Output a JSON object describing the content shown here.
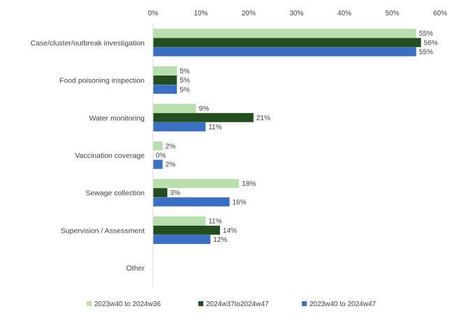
{
  "chart_data": {
    "type": "bar",
    "orientation": "horizontal",
    "title": "",
    "xlabel": "",
    "ylabel": "",
    "xlim": [
      0,
      60
    ],
    "x_ticks": [
      "0%",
      "10%",
      "20%",
      "30%",
      "40%",
      "50%",
      "60%"
    ],
    "x_axis_position": "top",
    "grid": false,
    "legend_position": "bottom",
    "categories": [
      "Case/cluster/outbreak investigation",
      "Food poisoning inspection",
      "Water monitoring",
      "Vaccination coverage",
      "Sewage collection",
      "Supervision / Assessment",
      "Other"
    ],
    "series": [
      {
        "name": "2023w40 to 2024w36",
        "color": "#b9dfae",
        "values": [
          55,
          5,
          9,
          2,
          18,
          11,
          null
        ],
        "labels": [
          "55%",
          "5%",
          "9%",
          "2%",
          "18%",
          "11%",
          ""
        ]
      },
      {
        "name": "2024w37to2024w47",
        "color": "#234d1e",
        "values": [
          56,
          5,
          21,
          0,
          3,
          14,
          null
        ],
        "labels": [
          "56%",
          "5%",
          "21%",
          "0%",
          "3%",
          "14%",
          ""
        ]
      },
      {
        "name": "2023w40 to 2024w47",
        "color": "#3a70c4",
        "values": [
          55,
          5,
          11,
          2,
          16,
          12,
          null
        ],
        "labels": [
          "55%",
          "5%",
          "11%",
          "2%",
          "16%",
          "12%",
          ""
        ]
      }
    ]
  }
}
